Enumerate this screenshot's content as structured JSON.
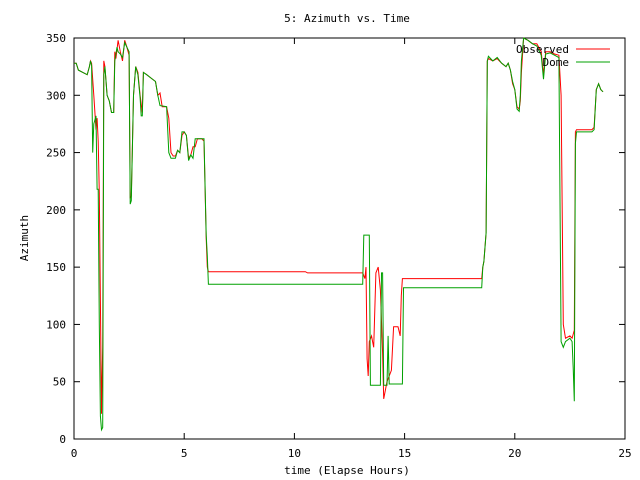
{
  "chart_data": {
    "type": "line",
    "title": "5: Azimuth vs. Time",
    "xlabel": "time (Elapse Hours)",
    "ylabel": "Azimuth",
    "xlim": [
      0,
      25
    ],
    "ylim": [
      0,
      350
    ],
    "xticks": [
      0,
      5,
      10,
      15,
      20,
      25
    ],
    "yticks": [
      0,
      50,
      100,
      150,
      200,
      250,
      300,
      350
    ],
    "grid": false,
    "legend_position": "top-right",
    "series": [
      {
        "name": "Observed",
        "color": "#ff0000",
        "points": [
          [
            0.0,
            328
          ],
          [
            0.1,
            328
          ],
          [
            0.2,
            322
          ],
          [
            0.4,
            320
          ],
          [
            0.6,
            318
          ],
          [
            0.7,
            325
          ],
          [
            0.75,
            330
          ],
          [
            0.8,
            328
          ],
          [
            0.9,
            300
          ],
          [
            1.0,
            270
          ],
          [
            1.05,
            280
          ],
          [
            1.1,
            260
          ],
          [
            1.15,
            215
          ],
          [
            1.2,
            120
          ],
          [
            1.25,
            22
          ],
          [
            1.3,
            80
          ],
          [
            1.35,
            330
          ],
          [
            1.4,
            325
          ],
          [
            1.5,
            300
          ],
          [
            1.6,
            295
          ],
          [
            1.7,
            285
          ],
          [
            1.75,
            285
          ],
          [
            1.8,
            285
          ],
          [
            1.85,
            338
          ],
          [
            1.9,
            332
          ],
          [
            1.95,
            340
          ],
          [
            2.0,
            348
          ],
          [
            2.1,
            338
          ],
          [
            2.2,
            330
          ],
          [
            2.3,
            348
          ],
          [
            2.4,
            342
          ],
          [
            2.5,
            335
          ],
          [
            2.55,
            210
          ],
          [
            2.6,
            212
          ],
          [
            2.7,
            300
          ],
          [
            2.8,
            325
          ],
          [
            2.9,
            320
          ],
          [
            3.0,
            300
          ],
          [
            3.1,
            285
          ],
          [
            3.15,
            320
          ],
          [
            3.3,
            318
          ],
          [
            3.5,
            315
          ],
          [
            3.7,
            312
          ],
          [
            3.8,
            300
          ],
          [
            3.9,
            302
          ],
          [
            4.0,
            290
          ],
          [
            4.2,
            290
          ],
          [
            4.3,
            280
          ],
          [
            4.4,
            250
          ],
          [
            4.5,
            247
          ],
          [
            4.6,
            247
          ],
          [
            4.7,
            252
          ],
          [
            4.8,
            250
          ],
          [
            4.9,
            265
          ],
          [
            5.0,
            268
          ],
          [
            5.1,
            265
          ],
          [
            5.2,
            245
          ],
          [
            5.3,
            248
          ],
          [
            5.4,
            255
          ],
          [
            5.5,
            255
          ],
          [
            5.6,
            262
          ],
          [
            5.8,
            262
          ],
          [
            5.9,
            260
          ],
          [
            6.0,
            175
          ],
          [
            6.05,
            150
          ],
          [
            6.1,
            146
          ],
          [
            10.5,
            146
          ],
          [
            10.6,
            145
          ],
          [
            13.1,
            145
          ],
          [
            13.2,
            140
          ],
          [
            13.25,
            150
          ],
          [
            13.3,
            70
          ],
          [
            13.35,
            55
          ],
          [
            13.4,
            85
          ],
          [
            13.5,
            90
          ],
          [
            13.6,
            80
          ],
          [
            13.7,
            145
          ],
          [
            13.8,
            150
          ],
          [
            13.9,
            130
          ],
          [
            14.0,
            75
          ],
          [
            14.05,
            35
          ],
          [
            14.1,
            40
          ],
          [
            14.2,
            50
          ],
          [
            14.3,
            55
          ],
          [
            14.4,
            60
          ],
          [
            14.5,
            98
          ],
          [
            14.7,
            98
          ],
          [
            14.8,
            90
          ],
          [
            14.85,
            125
          ],
          [
            14.9,
            140
          ],
          [
            18.5,
            140
          ],
          [
            18.55,
            150
          ],
          [
            18.6,
            155
          ],
          [
            18.7,
            180
          ],
          [
            18.75,
            330
          ],
          [
            18.8,
            332
          ],
          [
            19.0,
            330
          ],
          [
            19.2,
            332
          ],
          [
            19.4,
            328
          ],
          [
            19.6,
            325
          ],
          [
            19.7,
            328
          ],
          [
            19.8,
            322
          ],
          [
            19.9,
            310
          ],
          [
            20.0,
            305
          ],
          [
            20.1,
            290
          ],
          [
            20.2,
            288
          ],
          [
            20.25,
            295
          ],
          [
            20.3,
            320
          ],
          [
            20.4,
            350
          ],
          [
            20.6,
            348
          ],
          [
            20.8,
            345
          ],
          [
            21.0,
            345
          ],
          [
            21.2,
            338
          ],
          [
            21.3,
            318
          ],
          [
            21.4,
            338
          ],
          [
            21.6,
            338
          ],
          [
            21.8,
            336
          ],
          [
            22.0,
            335
          ],
          [
            22.1,
            300
          ],
          [
            22.2,
            100
          ],
          [
            22.3,
            88
          ],
          [
            22.5,
            90
          ],
          [
            22.6,
            88
          ],
          [
            22.7,
            95
          ],
          [
            22.75,
            268
          ],
          [
            22.8,
            270
          ],
          [
            23.5,
            270
          ],
          [
            23.6,
            272
          ],
          [
            23.7,
            305
          ],
          [
            23.8,
            310
          ],
          [
            23.9,
            305
          ],
          [
            24.0,
            303
          ]
        ]
      },
      {
        "name": "Dome",
        "color": "#00a000",
        "points": [
          [
            0.0,
            328
          ],
          [
            0.1,
            328
          ],
          [
            0.2,
            322
          ],
          [
            0.4,
            320
          ],
          [
            0.6,
            318
          ],
          [
            0.7,
            325
          ],
          [
            0.75,
            330
          ],
          [
            0.8,
            326
          ],
          [
            0.85,
            250
          ],
          [
            0.9,
            275
          ],
          [
            1.0,
            282
          ],
          [
            1.05,
            218
          ],
          [
            1.1,
            218
          ],
          [
            1.15,
            100
          ],
          [
            1.2,
            20
          ],
          [
            1.25,
            8
          ],
          [
            1.3,
            10
          ],
          [
            1.35,
            318
          ],
          [
            1.4,
            325
          ],
          [
            1.5,
            300
          ],
          [
            1.6,
            295
          ],
          [
            1.7,
            285
          ],
          [
            1.8,
            285
          ],
          [
            1.85,
            330
          ],
          [
            1.95,
            342
          ],
          [
            2.0,
            338
          ],
          [
            2.1,
            336
          ],
          [
            2.2,
            333
          ],
          [
            2.3,
            346
          ],
          [
            2.4,
            342
          ],
          [
            2.5,
            338
          ],
          [
            2.55,
            205
          ],
          [
            2.6,
            208
          ],
          [
            2.7,
            300
          ],
          [
            2.8,
            325
          ],
          [
            2.9,
            318
          ],
          [
            3.0,
            298
          ],
          [
            3.05,
            282
          ],
          [
            3.1,
            282
          ],
          [
            3.15,
            320
          ],
          [
            3.3,
            318
          ],
          [
            3.5,
            315
          ],
          [
            3.7,
            312
          ],
          [
            3.8,
            300
          ],
          [
            3.9,
            291
          ],
          [
            4.2,
            290
          ],
          [
            4.3,
            250
          ],
          [
            4.4,
            245
          ],
          [
            4.6,
            245
          ],
          [
            4.7,
            252
          ],
          [
            4.8,
            250
          ],
          [
            4.9,
            268
          ],
          [
            5.0,
            268
          ],
          [
            5.1,
            265
          ],
          [
            5.2,
            243
          ],
          [
            5.3,
            248
          ],
          [
            5.4,
            245
          ],
          [
            5.5,
            262
          ],
          [
            5.8,
            262
          ],
          [
            5.9,
            262
          ],
          [
            6.0,
            178
          ],
          [
            6.05,
            160
          ],
          [
            6.1,
            135
          ],
          [
            13.1,
            135
          ],
          [
            13.15,
            178
          ],
          [
            13.4,
            178
          ],
          [
            13.45,
            47
          ],
          [
            13.5,
            47
          ],
          [
            13.9,
            47
          ],
          [
            13.95,
            145
          ],
          [
            14.0,
            145
          ],
          [
            14.05,
            47
          ],
          [
            14.2,
            47
          ],
          [
            14.25,
            90
          ],
          [
            14.3,
            48
          ],
          [
            14.9,
            48
          ],
          [
            14.95,
            132
          ],
          [
            18.5,
            132
          ],
          [
            18.55,
            150
          ],
          [
            18.6,
            155
          ],
          [
            18.7,
            180
          ],
          [
            18.75,
            330
          ],
          [
            18.8,
            334
          ],
          [
            19.0,
            330
          ],
          [
            19.2,
            333
          ],
          [
            19.4,
            328
          ],
          [
            19.6,
            325
          ],
          [
            19.7,
            328
          ],
          [
            19.8,
            322
          ],
          [
            19.9,
            312
          ],
          [
            20.0,
            305
          ],
          [
            20.1,
            288
          ],
          [
            20.2,
            286
          ],
          [
            20.25,
            300
          ],
          [
            20.3,
            330
          ],
          [
            20.4,
            350
          ],
          [
            20.6,
            348
          ],
          [
            20.8,
            345
          ],
          [
            21.0,
            343
          ],
          [
            21.2,
            335
          ],
          [
            21.3,
            314
          ],
          [
            21.4,
            336
          ],
          [
            21.6,
            337
          ],
          [
            21.8,
            335
          ],
          [
            22.0,
            333
          ],
          [
            22.1,
            85
          ],
          [
            22.2,
            80
          ],
          [
            22.3,
            85
          ],
          [
            22.5,
            88
          ],
          [
            22.6,
            85
          ],
          [
            22.65,
            62
          ],
          [
            22.7,
            33
          ],
          [
            22.75,
            258
          ],
          [
            22.8,
            268
          ],
          [
            23.5,
            268
          ],
          [
            23.6,
            270
          ],
          [
            23.7,
            305
          ],
          [
            23.8,
            310
          ],
          [
            23.9,
            305
          ],
          [
            24.0,
            303
          ]
        ]
      }
    ]
  }
}
